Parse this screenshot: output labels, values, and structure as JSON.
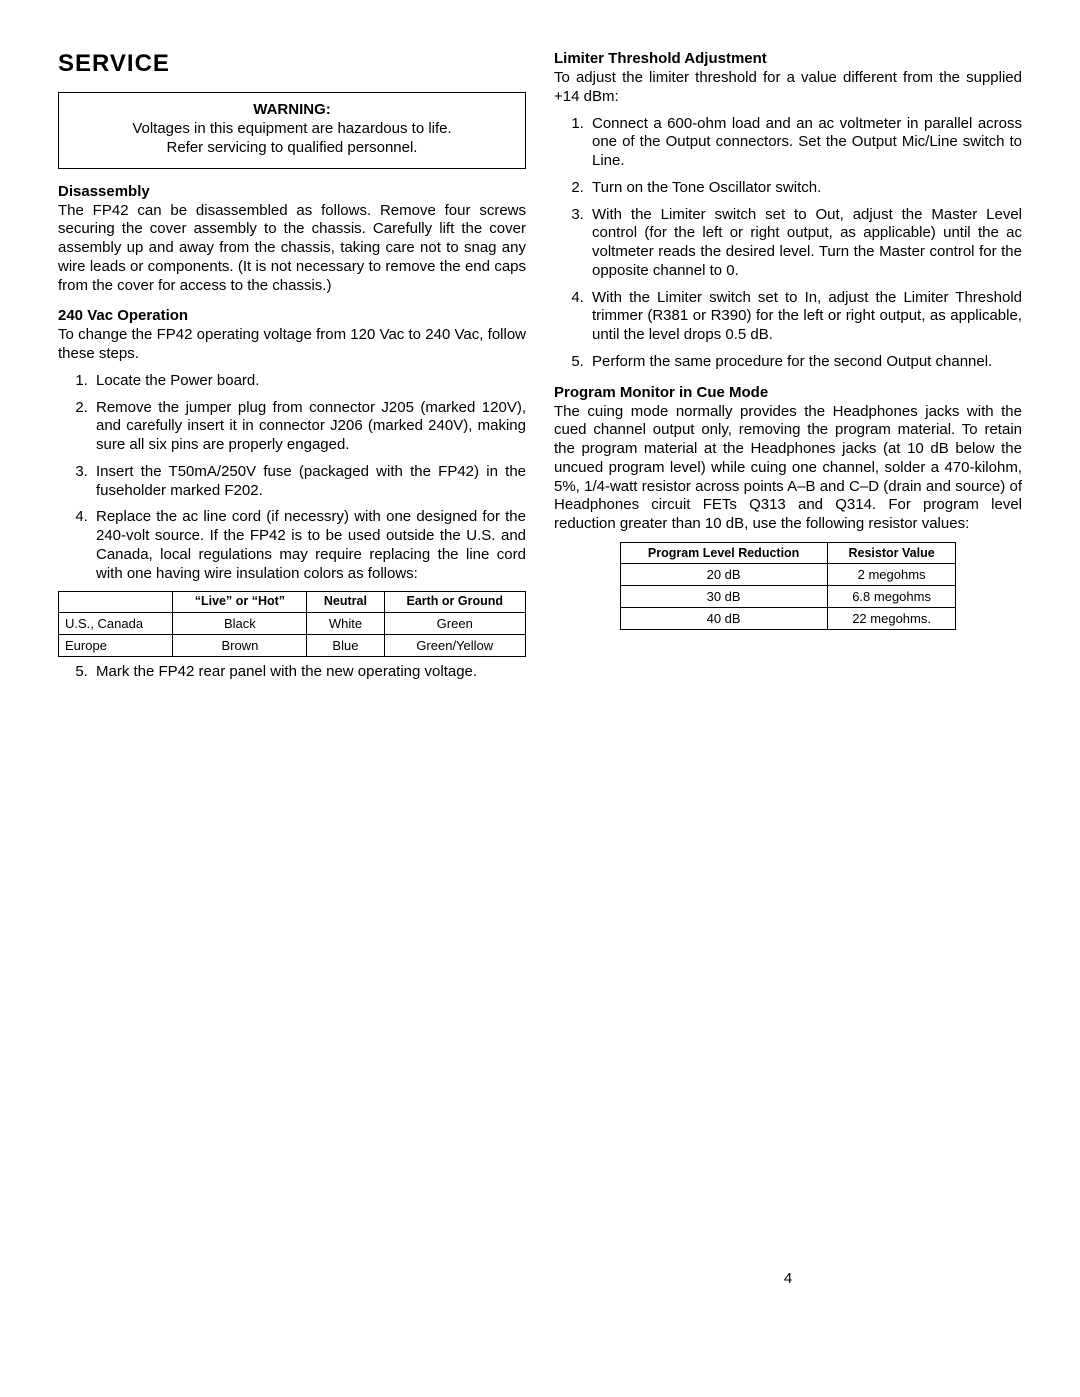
{
  "pageNumber": "4",
  "left": {
    "serviceTitle": "SERVICE",
    "warning": {
      "title": "WARNING:",
      "line1": "Voltages in this equipment are hazardous to life.",
      "line2": "Refer servicing to qualified personnel."
    },
    "disassembly": {
      "heading": "Disassembly",
      "body": "The FP42 can be disassembled as follows. Remove four screws securing the cover assembly to the chassis. Carefully lift the cover assembly up and away from the chassis, taking care not to snag any wire leads or components. (It is not necessary to remove the end caps from the cover for access to the chassis.)"
    },
    "vac": {
      "heading": "240 Vac Operation",
      "intro": "To change the FP42 operating voltage from 120 Vac to 240 Vac, follow these steps.",
      "steps": [
        "Locate the Power board.",
        "Remove the jumper plug from connector J205 (marked 120V), and carefully insert it in connector J206 (marked 240V), making sure all six pins are properly engaged.",
        "Insert the T50mA/250V fuse (packaged with the FP42) in the fuseholder marked F202.",
        "Replace the ac line cord (if necessry) with one designed for the 240-volt source. If the FP42 is to be used outside the U.S. and Canada, local regulations may require replacing the line cord with one having wire insulation colors as follows:"
      ],
      "table": {
        "headers": [
          "",
          "“Live” or “Hot”",
          "Neutral",
          "Earth or Ground"
        ],
        "rows": [
          [
            "U.S., Canada",
            "Black",
            "White",
            "Green"
          ],
          [
            "Europe",
            "Brown",
            "Blue",
            "Green/Yellow"
          ]
        ]
      },
      "step5": "Mark the FP42 rear panel with the new operating voltage."
    }
  },
  "right": {
    "limiter": {
      "heading": "Limiter Threshold Adjustment",
      "intro": "To adjust the limiter threshold for a value different from the supplied +14 dBm:",
      "steps": [
        "Connect a 600-ohm load and an ac voltmeter in parallel across one of the Output connectors. Set the Output Mic/Line switch to Line.",
        "Turn on the Tone Oscillator switch.",
        "With the Limiter switch set to Out, adjust the Master Level control (for the left or right output, as applicable) until the ac voltmeter reads the desired level. Turn the Master control for the opposite channel to 0.",
        "With the Limiter switch set to In, adjust the Limiter Threshold trimmer (R381 or R390) for the left or right output, as applicable, until the level drops 0.5 dB.",
        "Perform the same procedure for the second Output channel."
      ]
    },
    "cue": {
      "heading": "Program Monitor in Cue Mode",
      "body": "The cuing mode normally provides the Headphones jacks with the cued channel output only, removing the program material. To retain the program material at the Headphones jacks (at 10 dB below the uncued program level) while cuing one channel, solder a 470-kilohm, 5%, 1/4-watt resistor across points A–B and C–D (drain and source) of Headphones circuit FETs Q313 and Q314. For program level reduction greater than 10 dB, use the following resistor values:",
      "table": {
        "headers": [
          "Program Level Reduction",
          "Resistor Value"
        ],
        "rows": [
          [
            "20 dB",
            "2 megohms"
          ],
          [
            "30 dB",
            "6.8 megohms"
          ],
          [
            "40 dB",
            "22 megohms."
          ]
        ]
      }
    }
  }
}
